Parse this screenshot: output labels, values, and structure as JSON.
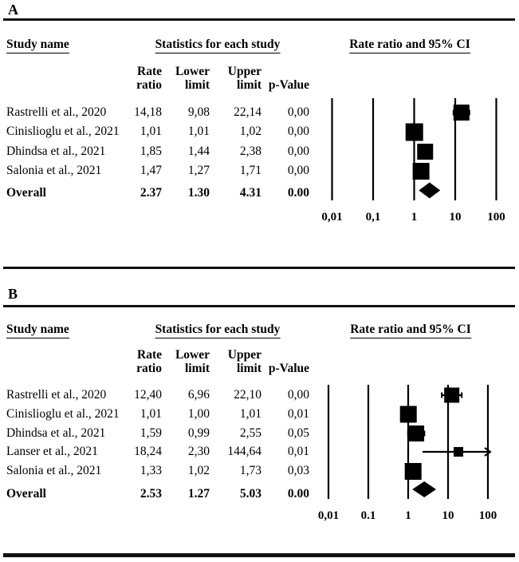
{
  "panels": [
    {
      "label": "A",
      "headers": {
        "study": "Study name",
        "stats": "Statistics for each study",
        "plot": "Rate ratio and 95% CI",
        "col1_line1": "Rate",
        "col1_line2": "ratio",
        "col2_line1": "Lower",
        "col2_line2": "limit",
        "col3_line1": "Upper",
        "col3_line2": "limit",
        "col4_line2": "p-Value"
      },
      "rows": [
        {
          "study": "Rastrelli et al., 2020",
          "rate": "14,18",
          "lower": "9,08",
          "upper": "22,14",
          "p": "0,00"
        },
        {
          "study": "Cinislioglu et al., 2021",
          "rate": "1,01",
          "lower": "1,01",
          "upper": "1,02",
          "p": "0,00"
        },
        {
          "study": "Dhindsa et al., 2021",
          "rate": "1,85",
          "lower": "1,44",
          "upper": "2,38",
          "p": "0,00"
        },
        {
          "study": "Salonia et al., 2021",
          "rate": "1,47",
          "lower": "1,27",
          "upper": "1,71",
          "p": "0,00"
        }
      ],
      "overall": {
        "study": "Overall",
        "rate": "2.37",
        "lower": "1.30",
        "upper": "4.31",
        "p": "0.00"
      }
    },
    {
      "label": "B",
      "headers": {
        "study": "Study name",
        "stats": "Statistics for each study",
        "plot": "Rate ratio and 95% CI",
        "col1_line1": "Rate",
        "col1_line2": "ratio",
        "col2_line1": "Lower",
        "col2_line2": "limit",
        "col3_line1": "Upper",
        "col3_line2": "limit",
        "col4_line2": "p-Value"
      },
      "rows": [
        {
          "study": "Rastrelli et al., 2020",
          "rate": "12,40",
          "lower": "6,96",
          "upper": "22,10",
          "p": "0,00"
        },
        {
          "study": "Cinislioglu et al., 2021",
          "rate": "1,01",
          "lower": "1,00",
          "upper": "1,01",
          "p": "0,01"
        },
        {
          "study": "Dhindsa et al., 2021",
          "rate": "1,59",
          "lower": "0,99",
          "upper": "2,55",
          "p": "0,05"
        },
        {
          "study": "Lanser et al., 2021",
          "rate": "18,24",
          "lower": "2,30",
          "upper": "144,64",
          "p": "0,01"
        },
        {
          "study": "Salonia et al., 2021",
          "rate": "1,33",
          "lower": "1,02",
          "upper": "1,73",
          "p": "0,03"
        }
      ],
      "overall": {
        "study": "Overall",
        "rate": "2.53",
        "lower": "1.27",
        "upper": "5.03",
        "p": "0.00"
      }
    }
  ],
  "chart_data": [
    {
      "type": "scatter",
      "title": "Panel A forest plot: Rate ratio and 95% CI",
      "x_axis": {
        "scale": "log",
        "ticks": [
          0.01,
          0.1,
          1,
          10,
          100
        ],
        "tick_labels": [
          "0,01",
          "0,1",
          "1",
          "10",
          "100"
        ]
      },
      "series": [
        {
          "name": "Rastrelli et al., 2020",
          "rate_ratio": 14.18,
          "ci_lower": 9.08,
          "ci_upper": 22.14,
          "p_value": 0.0,
          "marker": "square",
          "marker_size": 20
        },
        {
          "name": "Cinislioglu et al., 2021",
          "rate_ratio": 1.01,
          "ci_lower": 1.01,
          "ci_upper": 1.02,
          "p_value": 0.0,
          "marker": "square",
          "marker_size": 22
        },
        {
          "name": "Dhindsa et al., 2021",
          "rate_ratio": 1.85,
          "ci_lower": 1.44,
          "ci_upper": 2.38,
          "p_value": 0.0,
          "marker": "square",
          "marker_size": 20
        },
        {
          "name": "Salonia et al., 2021",
          "rate_ratio": 1.47,
          "ci_lower": 1.27,
          "ci_upper": 1.71,
          "p_value": 0.0,
          "marker": "square",
          "marker_size": 21
        },
        {
          "name": "Overall",
          "rate_ratio": 2.37,
          "ci_lower": 1.3,
          "ci_upper": 4.31,
          "p_value": 0.0,
          "marker": "diamond"
        }
      ]
    },
    {
      "type": "scatter",
      "title": "Panel B forest plot: Rate ratio and 95% CI",
      "x_axis": {
        "scale": "log",
        "ticks": [
          0.01,
          0.1,
          1,
          10,
          100
        ],
        "tick_labels": [
          "0,01",
          "0.1",
          "1",
          "10",
          "100"
        ]
      },
      "series": [
        {
          "name": "Rastrelli et al., 2020",
          "rate_ratio": 12.4,
          "ci_lower": 6.96,
          "ci_upper": 22.1,
          "p_value": 0.0,
          "marker": "square",
          "marker_size": 19
        },
        {
          "name": "Cinislioglu et al., 2021",
          "rate_ratio": 1.01,
          "ci_lower": 1.0,
          "ci_upper": 1.01,
          "p_value": 0.01,
          "marker": "square",
          "marker_size": 21
        },
        {
          "name": "Dhindsa et al., 2021",
          "rate_ratio": 1.59,
          "ci_lower": 0.99,
          "ci_upper": 2.55,
          "p_value": 0.05,
          "marker": "square",
          "marker_size": 20
        },
        {
          "name": "Lanser et al., 2021",
          "rate_ratio": 18.24,
          "ci_lower": 2.3,
          "ci_upper": 144.64,
          "p_value": 0.01,
          "marker": "square",
          "marker_size": 12
        },
        {
          "name": "Salonia et al., 2021",
          "rate_ratio": 1.33,
          "ci_lower": 1.02,
          "ci_upper": 1.73,
          "p_value": 0.03,
          "marker": "square",
          "marker_size": 21
        },
        {
          "name": "Overall",
          "rate_ratio": 2.53,
          "ci_lower": 1.27,
          "ci_upper": 5.03,
          "p_value": 0.0,
          "marker": "diamond"
        }
      ]
    }
  ]
}
